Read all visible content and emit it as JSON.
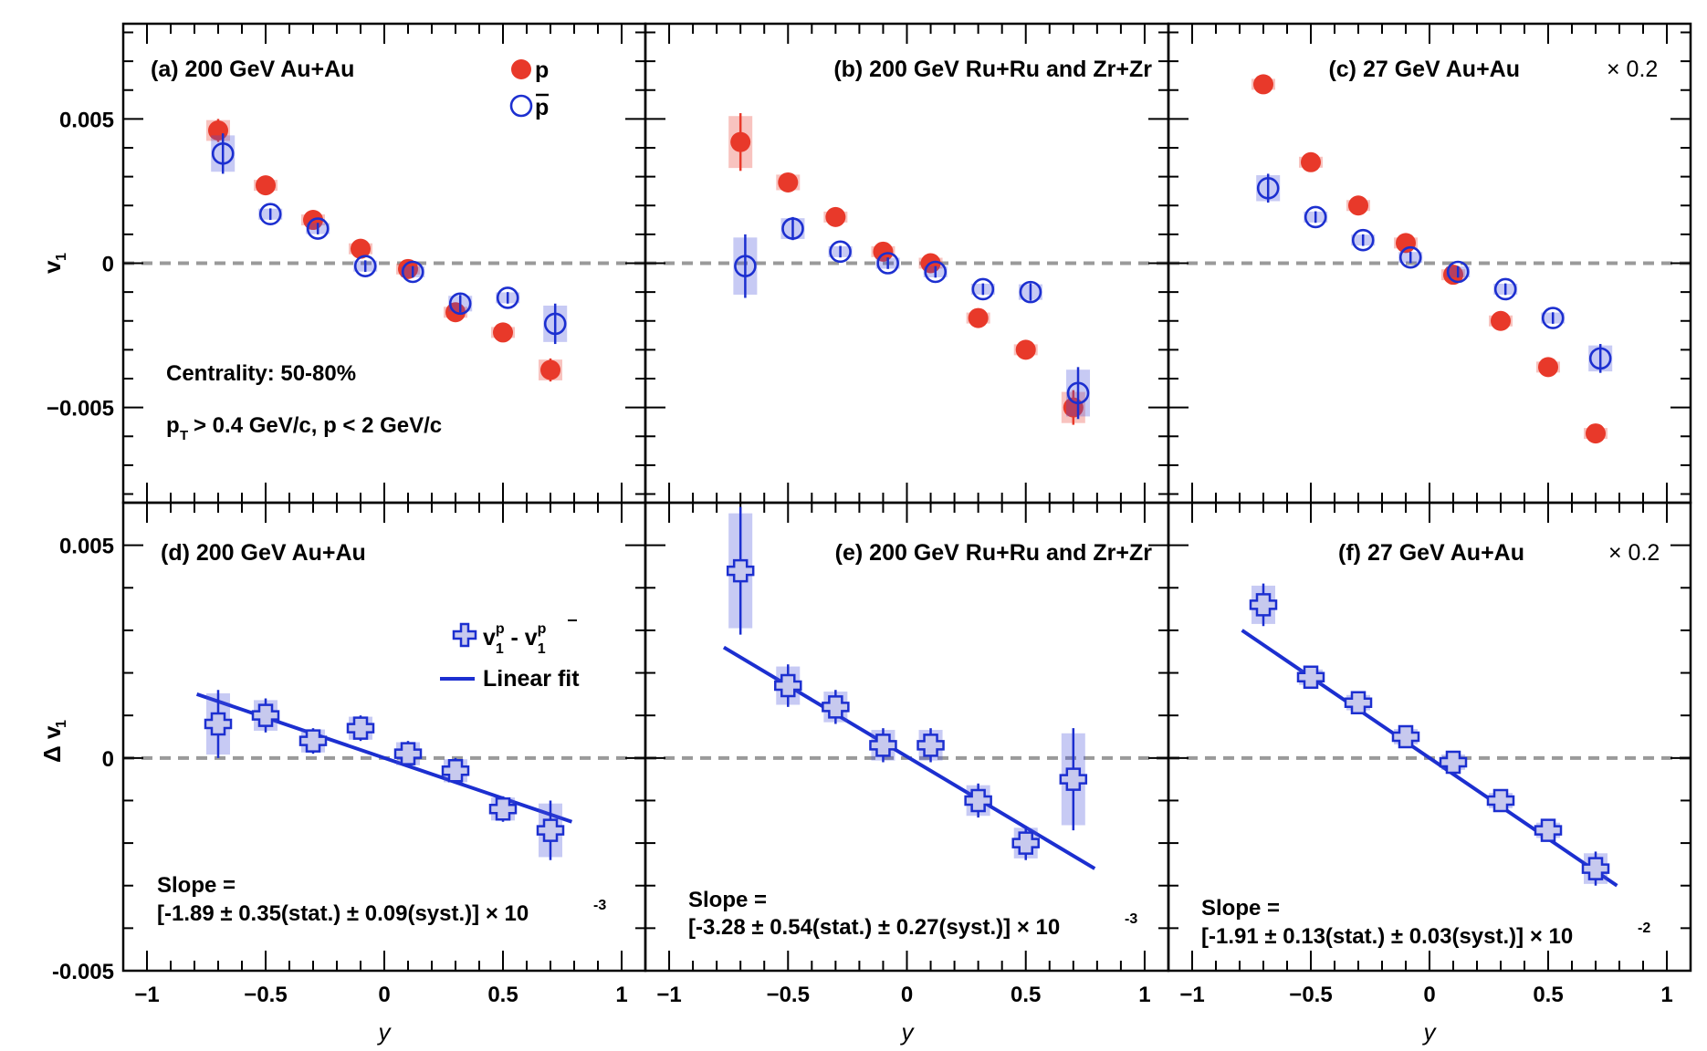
{
  "chart_data": [
    {
      "id": "a",
      "type": "scatter",
      "title": "(a) 200 GeV Au+Au",
      "ylabel_main": "v",
      "ylabel_sub": "1",
      "xlim": [
        -1.1,
        1.1
      ],
      "ylim": [
        -0.0083,
        0.0083
      ],
      "yticks": [
        "0.005",
        "0",
        "−0.005"
      ],
      "annotations": [
        "Centrality: 50-80%",
        "p",
        "T",
        " > 0.4 GeV/c, p < 2 GeV/c"
      ],
      "legend": {
        "p": "p",
        "pbar": "p"
      },
      "series": [
        {
          "name": "p",
          "color": "#e8392a",
          "x": [
            -0.7,
            -0.5,
            -0.3,
            -0.1,
            0.1,
            0.3,
            0.5,
            0.7
          ],
          "y": [
            0.0046,
            0.0027,
            0.0015,
            0.0005,
            -0.0002,
            -0.0017,
            -0.0024,
            -0.0037
          ],
          "stat": [
            0.0004,
            0.0002,
            0.0002,
            0.0002,
            0.0002,
            0.0002,
            0.0002,
            0.0004
          ]
        },
        {
          "name": "pbar",
          "color": "#1c2fd0",
          "x": [
            -0.68,
            -0.48,
            -0.28,
            -0.08,
            0.12,
            0.32,
            0.52,
            0.72
          ],
          "y": [
            0.0038,
            0.0017,
            0.0012,
            -0.0001,
            -0.0003,
            -0.0014,
            -0.0012,
            -0.0021
          ],
          "stat": [
            0.0007,
            0.0002,
            0.0002,
            0.0002,
            0.0002,
            0.0003,
            0.0002,
            0.0007
          ]
        }
      ]
    },
    {
      "id": "b",
      "type": "scatter",
      "title": "(b) 200 GeV Ru+Ru and Zr+Zr",
      "xlim": [
        -1.1,
        1.1
      ],
      "ylim": [
        -0.0083,
        0.0083
      ],
      "series": [
        {
          "name": "p",
          "color": "#e8392a",
          "x": [
            -0.7,
            -0.5,
            -0.3,
            -0.1,
            0.1,
            0.3,
            0.5,
            0.7
          ],
          "y": [
            0.0042,
            0.0028,
            0.0016,
            0.0004,
            0.0,
            -0.0019,
            -0.003,
            -0.005
          ],
          "stat": [
            0.001,
            0.0003,
            0.0002,
            0.0002,
            0.0002,
            0.0002,
            0.0002,
            0.0006
          ]
        },
        {
          "name": "pbar",
          "color": "#1c2fd0",
          "x": [
            -0.68,
            -0.48,
            -0.28,
            -0.08,
            0.12,
            0.32,
            0.52,
            0.72
          ],
          "y": [
            -0.0001,
            0.0012,
            0.0004,
            0.0,
            -0.0003,
            -0.0009,
            -0.001,
            -0.0045
          ],
          "stat": [
            0.0011,
            0.0004,
            0.0002,
            0.0002,
            0.0002,
            0.0002,
            0.0003,
            0.0009
          ]
        }
      ]
    },
    {
      "id": "c",
      "type": "scatter",
      "title": "(c) 27 GeV Au+Au",
      "title_suffix": "× 0.2",
      "xlim": [
        -1.1,
        1.1
      ],
      "ylim": [
        -0.0083,
        0.0083
      ],
      "series": [
        {
          "name": "p",
          "color": "#e8392a",
          "x": [
            -0.7,
            -0.5,
            -0.3,
            -0.1,
            0.1,
            0.3,
            0.5,
            0.7
          ],
          "y": [
            0.0062,
            0.0035,
            0.002,
            0.0007,
            -0.0004,
            -0.002,
            -0.0036,
            -0.0059
          ],
          "stat": [
            0.0002,
            0.0002,
            0.0002,
            0.0002,
            0.0002,
            0.0002,
            0.0002,
            0.0002
          ]
        },
        {
          "name": "pbar",
          "color": "#1c2fd0",
          "x": [
            -0.68,
            -0.48,
            -0.28,
            -0.08,
            0.12,
            0.32,
            0.52,
            0.72
          ],
          "y": [
            0.0026,
            0.0016,
            0.0008,
            0.0002,
            -0.0003,
            -0.0009,
            -0.0019,
            -0.0033
          ],
          "stat": [
            0.0005,
            0.0002,
            0.0002,
            0.0002,
            0.0002,
            0.0002,
            0.0002,
            0.0005
          ]
        }
      ]
    },
    {
      "id": "d",
      "type": "scatter",
      "title": "(d) 200 GeV Au+Au",
      "ylabel_main": "Δ v",
      "ylabel_sub": "1",
      "xlabel": "y",
      "xticks": [
        "−1",
        "−0.5",
        "0",
        "0.5",
        "1"
      ],
      "xlim": [
        -1.1,
        1.1
      ],
      "ylim": [
        -0.005,
        0.006
      ],
      "yticks": [
        "0.005",
        "0",
        "-0.005"
      ],
      "legend": {
        "diff_v": "v",
        "diff_sub": "1",
        "diff_sup_p": "p",
        "diff_minus": " - v",
        "diff_sub2": "1",
        "diff_sup_pbar": "p",
        "fit": "Linear fit"
      },
      "slope_label": "Slope =",
      "slope_text": "[-1.89 ± 0.35(stat.) ± 0.09(syst.)] × 10",
      "slope_exp": "-3",
      "series": [
        {
          "name": "v1p - v1pbar",
          "color": "#1c2fd0",
          "x": [
            -0.7,
            -0.5,
            -0.3,
            -0.1,
            0.1,
            0.3,
            0.5,
            0.7
          ],
          "y": [
            0.0008,
            0.001,
            0.0004,
            0.0007,
            0.0001,
            -0.0003,
            -0.0012,
            -0.0017
          ],
          "stat": [
            0.0008,
            0.0004,
            0.0003,
            0.0003,
            0.0003,
            0.0003,
            0.0003,
            0.0007
          ]
        }
      ],
      "fit": {
        "x": [
          -0.79,
          0.79
        ],
        "y": [
          0.0015,
          -0.0015
        ]
      }
    },
    {
      "id": "e",
      "type": "scatter",
      "title": "(e) 200 GeV Ru+Ru and Zr+Zr",
      "xlabel": "y",
      "xticks": [
        "−1",
        "−0.5",
        "0",
        "0.5",
        "1"
      ],
      "xlim": [
        -1.1,
        1.1
      ],
      "ylim": [
        -0.005,
        0.006
      ],
      "slope_label": "Slope =",
      "slope_text": "[-3.28 ± 0.54(stat.) ± 0.27(syst.)] × 10",
      "slope_exp": "-3",
      "series": [
        {
          "name": "v1p - v1pbar",
          "color": "#1c2fd0",
          "x": [
            -0.7,
            -0.5,
            -0.3,
            -0.1,
            0.1,
            0.3,
            0.5,
            0.7
          ],
          "y": [
            0.0044,
            0.0017,
            0.0012,
            0.0003,
            0.0003,
            -0.001,
            -0.002,
            -0.0005
          ],
          "stat": [
            0.0015,
            0.0005,
            0.0004,
            0.0004,
            0.0004,
            0.0004,
            0.0004,
            0.0012
          ]
        }
      ],
      "fit": {
        "x": [
          -0.77,
          0.79
        ],
        "y": [
          0.0026,
          -0.0026
        ]
      }
    },
    {
      "id": "f",
      "type": "scatter",
      "title": "(f) 27 GeV Au+Au",
      "title_suffix": "× 0.2",
      "xlabel": "y",
      "xticks": [
        "−1",
        "−0.5",
        "0",
        "0.5",
        "1"
      ],
      "xlim": [
        -1.1,
        1.1
      ],
      "ylim": [
        -0.005,
        0.006
      ],
      "slope_label": "Slope =",
      "slope_text": "[-1.91 ± 0.13(stat.) ± 0.03(syst.)] × 10",
      "slope_exp": "-2",
      "series": [
        {
          "name": "v1p - v1pbar",
          "color": "#1c2fd0",
          "x": [
            -0.7,
            -0.5,
            -0.3,
            -0.1,
            0.1,
            0.3,
            0.5,
            0.7
          ],
          "y": [
            0.0036,
            0.0019,
            0.0013,
            0.0005,
            -0.0001,
            -0.001,
            -0.0017,
            -0.0026
          ],
          "stat": [
            0.0005,
            0.0002,
            0.0002,
            0.0002,
            0.0002,
            0.0002,
            0.0002,
            0.0004
          ]
        }
      ],
      "fit": {
        "x": [
          -0.79,
          0.79
        ],
        "y": [
          0.003,
          -0.003
        ]
      }
    }
  ]
}
